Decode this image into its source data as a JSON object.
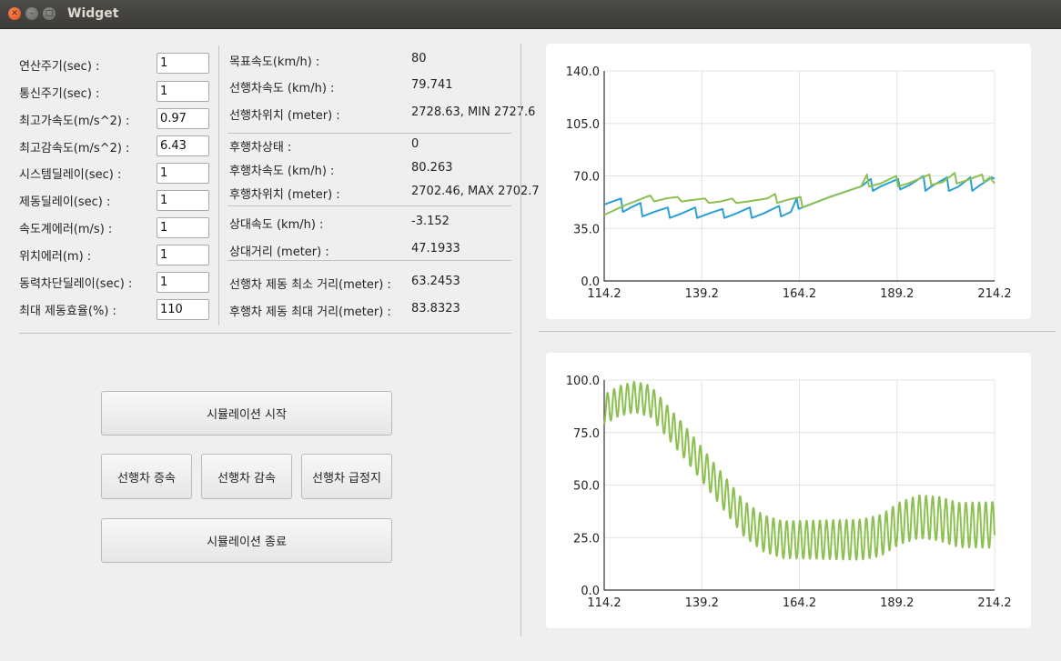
{
  "window": {
    "title": "Widget"
  },
  "params": [
    {
      "label": "연산주기(sec) :",
      "value": "1"
    },
    {
      "label": "통신주기(sec) :",
      "value": "1"
    },
    {
      "label": "최고가속도(m/s^2) :",
      "value": "0.97"
    },
    {
      "label": "최고감속도(m/s^2) :",
      "value": "6.43"
    },
    {
      "label": "시스템딜레이(sec) :",
      "value": "1"
    },
    {
      "label": "제동딜레이(sec) :",
      "value": "1"
    },
    {
      "label": "속도계에러(m/s) :",
      "value": "1"
    },
    {
      "label": "위치에러(m) :",
      "value": "1"
    },
    {
      "label": "동력차단딜레이(sec) :",
      "value": "1"
    },
    {
      "label": "최대 제동효율(%) :",
      "value": "110"
    }
  ],
  "status": [
    {
      "label": "목표속도(km/h) :",
      "value": "80"
    },
    {
      "label": "선행차속도 (km/h) :",
      "value": "79.741"
    },
    {
      "label": "선행차위치 (meter) :",
      "value": "2728.63, MIN 2727.6"
    },
    {
      "label": "후행차상태 :",
      "value": "0"
    },
    {
      "label": "후행차속도 (km/h) :",
      "value": "80.263"
    },
    {
      "label": "후행차위치 (meter) :",
      "value": "2702.46, MAX 2702.7"
    },
    {
      "label": "상대속도 (km/h) :",
      "value": "-3.152"
    },
    {
      "label": "상대거리 (meter) :",
      "value": "47.1933"
    },
    {
      "label": "선행차 제동 최소 거리(meter) :",
      "value": "63.2453"
    },
    {
      "label": "후행차 제동 최대 거리(meter) :",
      "value": "83.8323"
    }
  ],
  "buttons": {
    "start": "시뮬레이션 시작",
    "accel": "선행차 증속",
    "decel": "선행차 감속",
    "emergency": "선행차 급정지",
    "stop": "시뮬레이션 종료"
  },
  "colors": {
    "blue": "#2a9fd6",
    "green": "#8cc152",
    "grid": "#e4e4e4"
  },
  "chart_data": [
    {
      "type": "line",
      "xlim": [
        114.2,
        214.2
      ],
      "ylim": [
        0,
        140
      ],
      "xticks": [
        "114.2",
        "139.2",
        "164.2",
        "189.2",
        "214.2"
      ],
      "yticks": [
        "0.0",
        "35.0",
        "70.0",
        "105.0",
        "140.0"
      ],
      "grid": true,
      "series": [
        {
          "color": "#2a9fd6",
          "x": [
            114.2,
            118.5,
            119.0,
            121.0,
            123.5,
            124.0,
            127.0,
            130.5,
            131.0,
            134.0,
            137.5,
            138.0,
            141.0,
            144.5,
            145.0,
            148.0,
            151.5,
            152.0,
            155.0,
            159.0,
            159.5,
            162.0,
            163.5,
            164.0,
            172.0,
            180.0,
            182.5,
            183.0,
            185.0,
            189.5,
            190.0,
            192.5,
            196.0,
            196.5,
            198.0,
            202.0,
            202.5,
            205.0,
            208.0,
            208.5,
            210.0,
            213.5,
            214.2
          ],
          "y": [
            51,
            55,
            46,
            49,
            52,
            43,
            46,
            49,
            42,
            45,
            49,
            42,
            45,
            48,
            42,
            45,
            49,
            42,
            45,
            50,
            43,
            46,
            55,
            48,
            56,
            63,
            68,
            60,
            63,
            68,
            61,
            64,
            70,
            60,
            63,
            69,
            60,
            63,
            69,
            60,
            63,
            69,
            68
          ]
        },
        {
          "color": "#8cc152",
          "x": [
            114.2,
            120.0,
            126.0,
            127.0,
            130.0,
            133.0,
            134.0,
            137.0,
            140.0,
            141.0,
            144.0,
            147.0,
            148.0,
            151.0,
            156.0,
            158.0,
            158.5,
            161.0,
            164.5,
            165.0,
            172.0,
            180.0,
            181.5,
            182.0,
            185.0,
            189.0,
            189.5,
            192.0,
            197.5,
            198.0,
            201.0,
            204.0,
            204.5,
            207.0,
            211.0,
            211.5,
            213.0,
            214.2
          ],
          "y": [
            44,
            51,
            57,
            53,
            55,
            56,
            53,
            54,
            55,
            52,
            53,
            55,
            52,
            53,
            55,
            58,
            52,
            54,
            56,
            49,
            56,
            63,
            71,
            63,
            65,
            70,
            63,
            65,
            71,
            64,
            66,
            72,
            65,
            67,
            71,
            66,
            69,
            65
          ]
        }
      ]
    },
    {
      "type": "line",
      "xlim": [
        114.2,
        214.2
      ],
      "ylim": [
        0,
        100
      ],
      "xticks": [
        "114.2",
        "139.2",
        "164.2",
        "189.2",
        "214.2"
      ],
      "yticks": [
        "0.0",
        "25.0",
        "50.0",
        "75.0",
        "100.0"
      ],
      "grid": true,
      "series": [
        {
          "color": "#8cc152",
          "oscillation": {
            "period": 1.7,
            "amplitude_start": 7,
            "amplitude_end": 11
          },
          "envelope_x": [
            114.2,
            118.0,
            122.0,
            126.0,
            130.0,
            135.0,
            140.0,
            145.0,
            150.0,
            155.0,
            160.0,
            165.0,
            170.0,
            175.0,
            180.0,
            185.0,
            190.0,
            195.0,
            200.0,
            205.0,
            210.0,
            214.2
          ],
          "envelope_y": [
            86,
            90,
            92,
            90,
            81,
            70,
            58,
            46,
            34,
            27,
            24,
            24,
            24,
            24,
            24,
            26,
            32,
            35,
            34,
            31,
            31,
            31
          ]
        }
      ]
    }
  ]
}
